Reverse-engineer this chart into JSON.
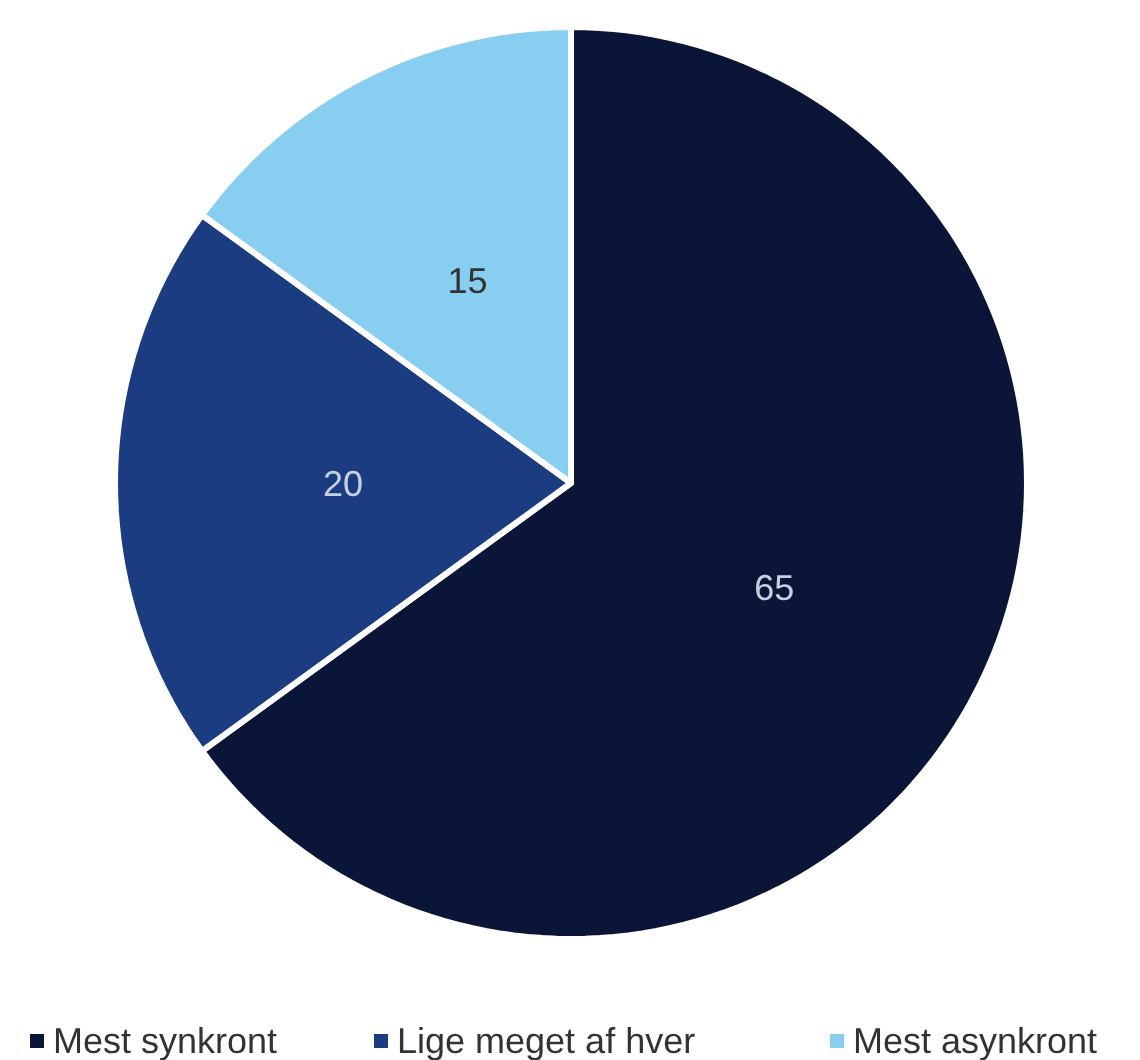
{
  "chart_data": {
    "type": "pie",
    "categories": [
      "Mest synkront",
      "Lige meget af hver",
      "Mest asynkront"
    ],
    "values": [
      65,
      20,
      15
    ],
    "colors": [
      "#0b1538",
      "#1b3c80",
      "#87cef0"
    ],
    "data_labels": true,
    "legend": "bottom"
  }
}
